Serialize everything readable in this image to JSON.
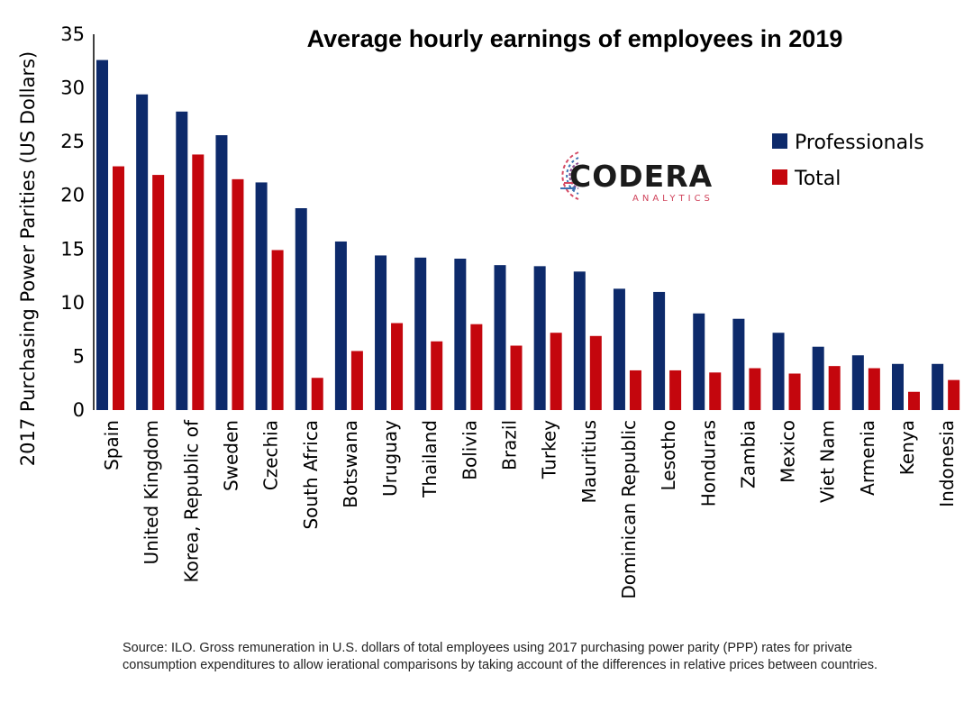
{
  "source_note": "Source: ILO. Gross remuneration in U.S. dollars of total employees using 2017 purchasing power parity (PPP) rates for private consumption expenditures to allow ierational comparisons by taking account of the differences in relative prices between countries.",
  "logo": {
    "name": "CODERA",
    "sub": "ANALYTICS"
  },
  "chart_data": {
    "type": "bar",
    "title": "Average hourly earnings of employees in 2019",
    "xlabel": "",
    "ylabel": "2017 Purchasing Power Parities (US Dollars)",
    "ylim": [
      0,
      35
    ],
    "yticks": [
      "0",
      "5",
      "10",
      "15",
      "20",
      "25",
      "30",
      "35"
    ],
    "grid": false,
    "legend_position": "top-right",
    "categories": [
      "Spain",
      "United Kingdom",
      "Korea, Republic of",
      "Sweden",
      "Czechia",
      "South Africa",
      "Botswana",
      "Uruguay",
      "Thailand",
      "Bolivia",
      "Brazil",
      "Turkey",
      "Mauritius",
      "Dominican Republic",
      "Lesotho",
      "Honduras",
      "Zambia",
      "Mexico",
      "Viet Nam",
      "Armenia",
      "Kenya",
      "Indonesia"
    ],
    "series": [
      {
        "name": "Professionals",
        "color": "#0d2a6b",
        "values": [
          32.6,
          29.4,
          27.8,
          25.6,
          21.2,
          18.8,
          15.7,
          14.4,
          14.2,
          14.1,
          13.5,
          13.4,
          12.9,
          11.3,
          11.0,
          9.0,
          8.5,
          7.2,
          5.9,
          5.1,
          4.3,
          4.3
        ]
      },
      {
        "name": "Total",
        "color": "#c4060d",
        "values": [
          22.7,
          21.9,
          23.8,
          21.5,
          14.9,
          3.0,
          5.5,
          8.1,
          6.4,
          8.0,
          6.0,
          7.2,
          6.9,
          3.7,
          3.7,
          3.5,
          3.9,
          3.4,
          4.1,
          3.9,
          1.7,
          2.8
        ]
      }
    ]
  }
}
